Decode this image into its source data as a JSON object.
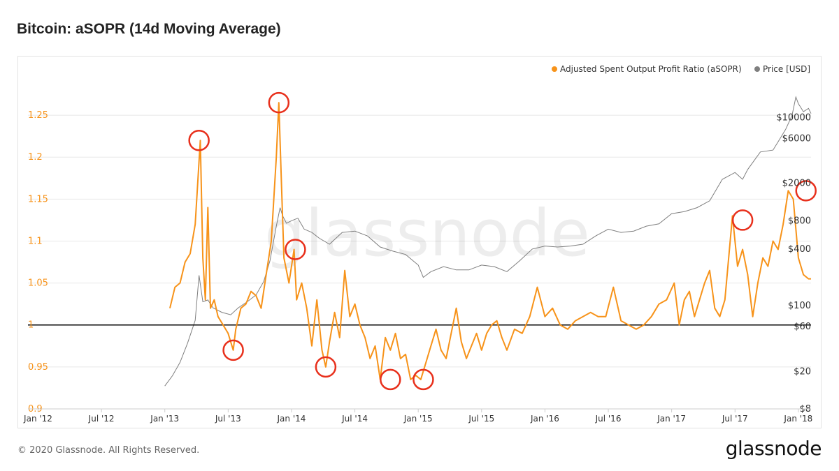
{
  "title": "Bitcoin: aSOPR (14d Moving Average)",
  "footer": "© 2020 Glassnode. All Rights Reserved.",
  "brand": "glassnode",
  "watermark": "glassnode",
  "colors": {
    "asopr": "#f7931a",
    "price": "#7f7f7f",
    "marker": "#e8301c",
    "baseline": "#000000",
    "grid": "#e8e8e8"
  },
  "chart_data": {
    "type": "line",
    "title": "Bitcoin: aSOPR (14d Moving Average)",
    "legend": {
      "placement": "top-right",
      "entries": [
        "Adjusted Spent Output Profit Ratio (aSOPR)",
        "Price [USD]"
      ]
    },
    "x_ticks": [
      "Jan '12",
      "Jul '12",
      "Jan '13",
      "Jul '13",
      "Jan '14",
      "Jul '14",
      "Jan '15",
      "Jul '15",
      "Jan '16",
      "Jul '16",
      "Jan '17",
      "Jul '17",
      "Jan '18"
    ],
    "x_tick_years": [
      2012,
      2012.5,
      2013,
      2013.5,
      2014,
      2014.5,
      2015,
      2015.5,
      2016,
      2016.5,
      2017,
      2017.5,
      2018
    ],
    "xlim": [
      2011.92,
      2018.1
    ],
    "y_left": {
      "ticks": [
        0.9,
        0.95,
        1,
        1.05,
        1.1,
        1.15,
        1.2,
        1.25
      ],
      "tick_labels": [
        "0.9",
        "0.95",
        "1",
        "1.05",
        "1.1",
        "1.15",
        "1.2",
        "1.25"
      ],
      "lim": [
        0.9,
        1.295
      ]
    },
    "y_right": {
      "scale": "log",
      "tick_values": [
        8,
        20,
        60,
        100,
        400,
        800,
        2000,
        6000,
        10000
      ],
      "tick_labels": [
        "$8",
        "$20",
        "$60",
        "$100",
        "$400",
        "$800",
        "$2000",
        "$6000",
        "$10000"
      ]
    },
    "reference_line": 1,
    "grid": true,
    "series": [
      {
        "name": "Adjusted Spent Output Profit Ratio (aSOPR)",
        "axis": "left",
        "x": [
          2013.04,
          2013.08,
          2013.12,
          2013.16,
          2013.2,
          2013.24,
          2013.28,
          2013.3,
          2013.32,
          2013.34,
          2013.36,
          2013.39,
          2013.42,
          2013.46,
          2013.5,
          2013.54,
          2013.56,
          2013.6,
          2013.64,
          2013.68,
          2013.72,
          2013.76,
          2013.8,
          2013.84,
          2013.88,
          2013.9,
          2013.92,
          2013.94,
          2013.98,
          2014.02,
          2014.04,
          2014.08,
          2014.12,
          2014.16,
          2014.2,
          2014.24,
          2014.27,
          2014.3,
          2014.34,
          2014.38,
          2014.42,
          2014.46,
          2014.5,
          2014.54,
          2014.58,
          2014.62,
          2014.66,
          2014.7,
          2014.74,
          2014.78,
          2014.82,
          2014.86,
          2014.9,
          2014.94,
          2014.98,
          2015.02,
          2015.06,
          2015.1,
          2015.14,
          2015.18,
          2015.22,
          2015.26,
          2015.3,
          2015.34,
          2015.38,
          2015.42,
          2015.46,
          2015.5,
          2015.54,
          2015.58,
          2015.62,
          2015.66,
          2015.7,
          2015.76,
          2015.82,
          2015.88,
          2015.94,
          2016.0,
          2016.06,
          2016.12,
          2016.18,
          2016.24,
          2016.3,
          2016.36,
          2016.42,
          2016.48,
          2016.54,
          2016.6,
          2016.66,
          2016.72,
          2016.78,
          2016.84,
          2016.9,
          2016.96,
          2017.02,
          2017.06,
          2017.1,
          2017.14,
          2017.18,
          2017.22,
          2017.26,
          2017.3,
          2017.34,
          2017.38,
          2017.42,
          2017.48,
          2017.52,
          2017.56,
          2017.6,
          2017.64,
          2017.68,
          2017.72,
          2017.76,
          2017.8,
          2017.84,
          2017.88,
          2017.92,
          2017.96,
          2018.0,
          2018.04,
          2018.08,
          2018.1
        ],
        "values": [
          1.02,
          1.045,
          1.05,
          1.075,
          1.085,
          1.12,
          1.22,
          1.08,
          1.03,
          1.14,
          1.02,
          1.03,
          1.01,
          1.0,
          0.99,
          0.97,
          0.995,
          1.02,
          1.025,
          1.04,
          1.035,
          1.02,
          1.06,
          1.1,
          1.2,
          1.265,
          1.17,
          1.08,
          1.05,
          1.09,
          1.03,
          1.05,
          1.02,
          0.975,
          1.03,
          0.97,
          0.95,
          0.98,
          1.015,
          0.985,
          1.065,
          1.01,
          1.025,
          1.0,
          0.985,
          0.96,
          0.975,
          0.935,
          0.985,
          0.97,
          0.99,
          0.96,
          0.965,
          0.935,
          0.94,
          0.935,
          0.955,
          0.975,
          0.995,
          0.97,
          0.96,
          0.99,
          1.02,
          0.98,
          0.96,
          0.975,
          0.99,
          0.97,
          0.99,
          1.0,
          1.005,
          0.985,
          0.97,
          0.995,
          0.99,
          1.01,
          1.045,
          1.01,
          1.02,
          1.0,
          0.995,
          1.005,
          1.01,
          1.015,
          1.01,
          1.01,
          1.045,
          1.005,
          1.0,
          0.995,
          1.0,
          1.01,
          1.025,
          1.03,
          1.05,
          1.0,
          1.03,
          1.04,
          1.01,
          1.03,
          1.05,
          1.065,
          1.02,
          1.01,
          1.03,
          1.13,
          1.07,
          1.09,
          1.06,
          1.01,
          1.05,
          1.08,
          1.07,
          1.1,
          1.09,
          1.12,
          1.16,
          1.15,
          1.08,
          1.06,
          1.055,
          1.055
        ]
      },
      {
        "name": "Price [USD]",
        "axis": "right",
        "x": [
          2013.0,
          2013.06,
          2013.12,
          2013.18,
          2013.24,
          2013.27,
          2013.3,
          2013.34,
          2013.38,
          2013.45,
          2013.52,
          2013.58,
          2013.65,
          2013.72,
          2013.78,
          2013.83,
          2013.88,
          2013.91,
          2013.93,
          2013.96,
          2014.0,
          2014.05,
          2014.1,
          2014.16,
          2014.22,
          2014.3,
          2014.4,
          2014.5,
          2014.6,
          2014.7,
          2014.8,
          2014.9,
          2015.0,
          2015.04,
          2015.1,
          2015.2,
          2015.3,
          2015.4,
          2015.5,
          2015.6,
          2015.7,
          2015.8,
          2015.9,
          2016.0,
          2016.1,
          2016.2,
          2016.3,
          2016.4,
          2016.5,
          2016.6,
          2016.7,
          2016.8,
          2016.9,
          2017.0,
          2017.1,
          2017.2,
          2017.3,
          2017.4,
          2017.5,
          2017.56,
          2017.6,
          2017.7,
          2017.8,
          2017.85,
          2017.9,
          2017.95,
          2017.98,
          2018.0,
          2018.04,
          2018.08,
          2018.1
        ],
        "values": [
          14,
          18,
          25,
          40,
          70,
          210,
          110,
          115,
          95,
          85,
          80,
          95,
          110,
          130,
          180,
          300,
          700,
          1100,
          900,
          750,
          800,
          850,
          650,
          600,
          520,
          450,
          600,
          620,
          550,
          420,
          380,
          350,
          270,
          200,
          230,
          260,
          240,
          240,
          270,
          260,
          230,
          300,
          400,
          430,
          420,
          430,
          450,
          550,
          650,
          600,
          620,
          700,
          740,
          950,
          1000,
          1100,
          1300,
          2200,
          2600,
          2200,
          2800,
          4300,
          4500,
          5800,
          7500,
          10500,
          16500,
          14000,
          11500,
          12500,
          11000
        ]
      }
    ],
    "highlighted_points": [
      {
        "x": 2013.27,
        "y": 1.22
      },
      {
        "x": 2013.54,
        "y": 0.97
      },
      {
        "x": 2013.9,
        "y": 1.265
      },
      {
        "x": 2014.03,
        "y": 1.09
      },
      {
        "x": 2014.27,
        "y": 0.95
      },
      {
        "x": 2014.78,
        "y": 0.935
      },
      {
        "x": 2015.04,
        "y": 0.935
      },
      {
        "x": 2017.56,
        "y": 1.125
      },
      {
        "x": 2018.06,
        "y": 1.16
      }
    ]
  }
}
